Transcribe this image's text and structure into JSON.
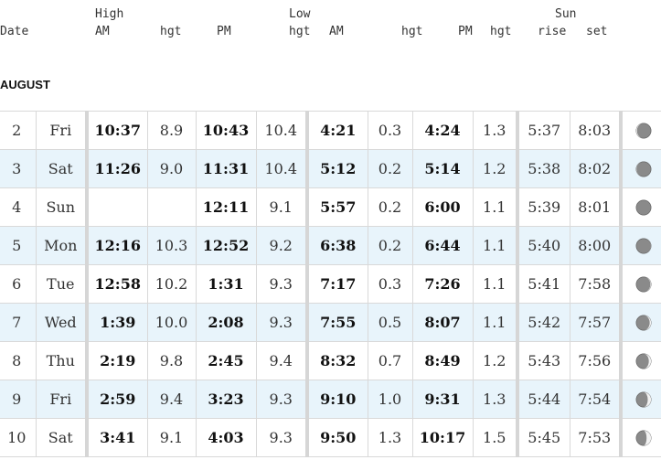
{
  "header": {
    "date": "Date",
    "high": "High",
    "high_am": "AM",
    "high_am_hgt": "hgt",
    "high_pm": "PM",
    "low": "Low",
    "high_pm_hgt": "hgt",
    "low_am": "AM",
    "low_am_hgt": "hgt",
    "low_pm": "PM",
    "low_pm_hgt": "hgt",
    "sun": "Sun",
    "rise": "rise",
    "set": "set"
  },
  "month": "AUGUST",
  "rows": [
    {
      "date": "2",
      "day": "Fri",
      "high_am": "10:37",
      "high_am_hgt": "8.9",
      "high_pm": "10:43",
      "high_pm_hgt": "10.4",
      "low_am": "4:21",
      "low_am_hgt": "0.3",
      "low_pm": "4:24",
      "low_pm_hgt": "1.3",
      "sunrise": "5:37",
      "sunset": "8:03",
      "moon": "waning-crescent",
      "moon_fraction": 0.05
    },
    {
      "date": "3",
      "day": "Sat",
      "high_am": "11:26",
      "high_am_hgt": "9.0",
      "high_pm": "11:31",
      "high_pm_hgt": "10.4",
      "low_am": "5:12",
      "low_am_hgt": "0.2",
      "low_pm": "5:14",
      "low_pm_hgt": "1.2",
      "sunrise": "5:38",
      "sunset": "8:02",
      "moon": "waning-crescent",
      "moon_fraction": 0.02
    },
    {
      "date": "4",
      "day": "Sun",
      "high_am": "",
      "high_am_hgt": "",
      "high_pm": "12:11",
      "high_pm_hgt": "9.1",
      "low_am": "5:57",
      "low_am_hgt": "0.2",
      "low_pm": "6:00",
      "low_pm_hgt": "1.1",
      "sunrise": "5:39",
      "sunset": "8:01",
      "moon": "new-moon",
      "moon_fraction": 0.0
    },
    {
      "date": "5",
      "day": "Mon",
      "high_am": "12:16",
      "high_am_hgt": "10.3",
      "high_pm": "12:52",
      "high_pm_hgt": "9.2",
      "low_am": "6:38",
      "low_am_hgt": "0.2",
      "low_pm": "6:44",
      "low_pm_hgt": "1.1",
      "sunrise": "5:40",
      "sunset": "8:00",
      "moon": "waxing-crescent",
      "moon_fraction": 0.01
    },
    {
      "date": "6",
      "day": "Tue",
      "high_am": "12:58",
      "high_am_hgt": "10.2",
      "high_pm": "1:31",
      "high_pm_hgt": "9.3",
      "low_am": "7:17",
      "low_am_hgt": "0.3",
      "low_pm": "7:26",
      "low_pm_hgt": "1.1",
      "sunrise": "5:41",
      "sunset": "7:58",
      "moon": "waxing-crescent",
      "moon_fraction": 0.04
    },
    {
      "date": "7",
      "day": "Wed",
      "high_am": "1:39",
      "high_am_hgt": "10.0",
      "high_pm": "2:08",
      "high_pm_hgt": "9.3",
      "low_am": "7:55",
      "low_am_hgt": "0.5",
      "low_pm": "8:07",
      "low_pm_hgt": "1.1",
      "sunrise": "5:42",
      "sunset": "7:57",
      "moon": "waxing-crescent",
      "moon_fraction": 0.09
    },
    {
      "date": "8",
      "day": "Thu",
      "high_am": "2:19",
      "high_am_hgt": "9.8",
      "high_pm": "2:45",
      "high_pm_hgt": "9.4",
      "low_am": "8:32",
      "low_am_hgt": "0.7",
      "low_pm": "8:49",
      "low_pm_hgt": "1.2",
      "sunrise": "5:43",
      "sunset": "7:56",
      "moon": "waxing-crescent",
      "moon_fraction": 0.15
    },
    {
      "date": "9",
      "day": "Fri",
      "high_am": "2:59",
      "high_am_hgt": "9.4",
      "high_pm": "3:23",
      "high_pm_hgt": "9.3",
      "low_am": "9:10",
      "low_am_hgt": "1.0",
      "low_pm": "9:31",
      "low_pm_hgt": "1.3",
      "sunrise": "5:44",
      "sunset": "7:54",
      "moon": "waxing-crescent",
      "moon_fraction": 0.22
    },
    {
      "date": "10",
      "day": "Sat",
      "high_am": "3:41",
      "high_am_hgt": "9.1",
      "high_pm": "4:03",
      "high_pm_hgt": "9.3",
      "low_am": "9:50",
      "low_am_hgt": "1.3",
      "low_pm": "10:17",
      "low_pm_hgt": "1.5",
      "sunrise": "5:45",
      "sunset": "7:53",
      "moon": "waxing-crescent",
      "moon_fraction": 0.3
    }
  ],
  "colors": {
    "row_alt": "#e8f4fb",
    "grid": "#d9d9d9",
    "moon_dark": "#8a8a8a",
    "moon_light": "#f2f2f2"
  }
}
